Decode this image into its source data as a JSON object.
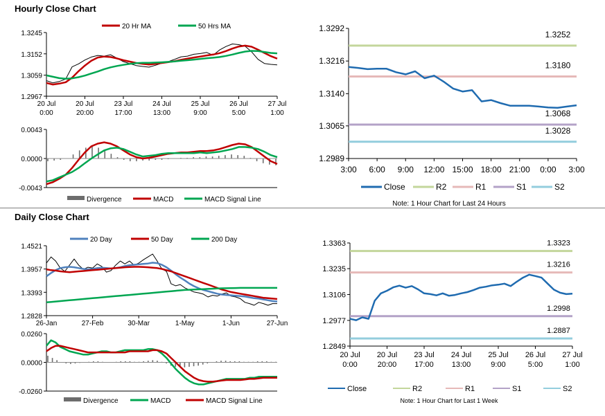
{
  "sections": {
    "hourly_title": "Hourly Close Chart",
    "daily_title": "Daily Close Chart"
  },
  "chart_data": [
    {
      "id": "hourly_price",
      "type": "line",
      "title": "Hourly Close Chart",
      "y_ticks": [
        "1.3245",
        "1.3152",
        "1.3059",
        "1.2967"
      ],
      "ylim": [
        1.2967,
        1.3245
      ],
      "x_ticks": [
        [
          "20 Jul",
          "0:00"
        ],
        [
          "20 Jul",
          "20:00"
        ],
        [
          "23 Jul",
          "17:00"
        ],
        [
          "24 Jul",
          "13:00"
        ],
        [
          "25 Jul",
          "9:00"
        ],
        [
          "26 Jul",
          "5:00"
        ],
        [
          "27 Jul",
          "1:00"
        ]
      ],
      "legend": [
        "20 Hr MA",
        "50 Hrs MA"
      ],
      "series": [
        {
          "name": "Close",
          "color": "#000000",
          "values": [
            1.3035,
            1.3025,
            1.3031,
            1.3042,
            1.3095,
            1.3108,
            1.3125,
            1.3138,
            1.3145,
            1.3142,
            1.3148,
            1.3133,
            1.3118,
            1.3109,
            1.3101,
            1.3097,
            1.3094,
            1.3102,
            1.3111,
            1.3118,
            1.3128,
            1.3139,
            1.3142,
            1.315,
            1.3153,
            1.3158,
            1.3146,
            1.3169,
            1.3184,
            1.3195,
            1.3192,
            1.3185,
            1.3161,
            1.3128,
            1.311,
            1.3106,
            1.3104
          ]
        },
        {
          "name": "20 Hr MA",
          "color": "#c00000",
          "values": [
            1.3025,
            1.3018,
            1.3022,
            1.3028,
            1.3048,
            1.3076,
            1.3101,
            1.3122,
            1.3136,
            1.314,
            1.3138,
            1.3132,
            1.3124,
            1.3118,
            1.3112,
            1.3108,
            1.3105,
            1.3108,
            1.3112,
            1.3116,
            1.312,
            1.3126,
            1.3131,
            1.3136,
            1.314,
            1.3145,
            1.3149,
            1.3155,
            1.3164,
            1.3175,
            1.3184,
            1.3188,
            1.3183,
            1.317,
            1.3156,
            1.3142,
            1.3131
          ]
        },
        {
          "name": "50 Hrs MA",
          "color": "#00a651",
          "values": [
            1.3058,
            1.3052,
            1.3046,
            1.3043,
            1.3045,
            1.305,
            1.3057,
            1.3066,
            1.3075,
            1.3085,
            1.3093,
            1.3099,
            1.3104,
            1.3108,
            1.3111,
            1.3113,
            1.3113,
            1.3114,
            1.3115,
            1.3117,
            1.3119,
            1.3122,
            1.3124,
            1.3127,
            1.313,
            1.3133,
            1.3135,
            1.3138,
            1.3143,
            1.3149,
            1.3156,
            1.3162,
            1.3165,
            1.3164,
            1.316,
            1.3156,
            1.3154
          ]
        }
      ]
    },
    {
      "id": "hourly_macd",
      "type": "line",
      "y_ticks": [
        "0.0043",
        "0.0000",
        "-0.0043"
      ],
      "ylim": [
        -0.0043,
        0.0043
      ],
      "legend": [
        "Divergence",
        "MACD",
        "MACD Signal Line"
      ],
      "divergence": [
        -0.0004,
        -0.0003,
        -0.0002,
        0.0,
        0.0006,
        0.0012,
        0.0016,
        0.0018,
        0.0016,
        0.0012,
        0.0007,
        0.0002,
        -0.0002,
        -0.0004,
        -0.0004,
        -0.0003,
        -0.0003,
        -0.0002,
        -0.0002,
        -0.0001,
        0.0,
        0.0001,
        0.0001,
        0.0002,
        0.0002,
        0.0003,
        0.0003,
        0.0004,
        0.0005,
        0.0006,
        0.0005,
        0.0004,
        0.0001,
        -0.0004,
        -0.0007,
        -0.0009,
        -0.001
      ],
      "series": [
        {
          "name": "MACD",
          "color": "#c00000",
          "values": [
            -0.0038,
            -0.0035,
            -0.003,
            -0.0024,
            -0.0014,
            -0.0002,
            0.0009,
            0.0018,
            0.0022,
            0.0024,
            0.0022,
            0.0018,
            0.0012,
            0.0006,
            0.0002,
            0.0,
            0.0001,
            0.0003,
            0.0005,
            0.0007,
            0.0008,
            0.0009,
            0.0009,
            0.001,
            0.0011,
            0.0011,
            0.0012,
            0.0014,
            0.0017,
            0.002,
            0.0022,
            0.0021,
            0.0017,
            0.001,
            0.0003,
            -0.0004,
            -0.0008
          ]
        },
        {
          "name": "MACD Signal Line",
          "color": "#00a651",
          "values": [
            -0.0034,
            -0.0032,
            -0.0028,
            -0.0024,
            -0.002,
            -0.0014,
            -0.0007,
            0.0,
            0.0006,
            0.0012,
            0.0015,
            0.0016,
            0.0014,
            0.001,
            0.0006,
            0.0003,
            0.0004,
            0.0005,
            0.0007,
            0.0008,
            0.0008,
            0.0008,
            0.0008,
            0.0008,
            0.0009,
            0.0008,
            0.0009,
            0.001,
            0.0012,
            0.0014,
            0.0017,
            0.0017,
            0.0016,
            0.0014,
            0.001,
            0.0005,
            0.0002
          ]
        }
      ]
    },
    {
      "id": "hourly_24h",
      "type": "line",
      "y_ticks": [
        "1.3292",
        "1.3216",
        "1.3140",
        "1.3065",
        "1.2989"
      ],
      "ylim": [
        1.2989,
        1.3292
      ],
      "x_ticks": [
        "3:00",
        "6:00",
        "9:00",
        "12:00",
        "15:00",
        "18:00",
        "21:00",
        "0:00",
        "3:00"
      ],
      "legend": [
        "Close",
        "R2",
        "R1",
        "S1",
        "S2"
      ],
      "note": "Note: 1 Hour Chart for Last 24 Hours",
      "levels": [
        {
          "name": "R2",
          "value": 1.3252,
          "label": "1.3252",
          "color": "#c3d69b"
        },
        {
          "name": "R1",
          "value": 1.318,
          "label": "1.3180",
          "color": "#e6b9b8"
        },
        {
          "name": "S1",
          "value": 1.3068,
          "label": "1.3068",
          "color": "#b3a2c7"
        },
        {
          "name": "S2",
          "value": 1.3028,
          "label": "1.3028",
          "color": "#93cddd"
        }
      ],
      "series": [
        {
          "name": "Close",
          "color": "#1f6bb0",
          "values": [
            1.3202,
            1.32,
            1.3197,
            1.3198,
            1.3198,
            1.319,
            1.3185,
            1.3192,
            1.3176,
            1.3182,
            1.3168,
            1.3152,
            1.3145,
            1.3148,
            1.3122,
            1.3125,
            1.3118,
            1.3112,
            1.3112,
            1.3112,
            1.311,
            1.3108,
            1.3107,
            1.311,
            1.3113
          ]
        }
      ]
    },
    {
      "id": "daily_price",
      "type": "line",
      "title": "Daily Close Chart",
      "y_ticks": [
        "1.4521",
        "1.3957",
        "1.3393",
        "1.2828"
      ],
      "ylim": [
        1.2828,
        1.4521
      ],
      "x_ticks": [
        "26-Jan",
        "27-Feb",
        "30-Mar",
        "1-May",
        "1-Jun",
        "27-Jun"
      ],
      "legend": [
        "20 Day",
        "50 Day",
        "200 Day"
      ],
      "series": [
        {
          "name": "Close",
          "color": "#000000",
          "values": [
            1.41,
            1.425,
            1.415,
            1.398,
            1.39,
            1.405,
            1.42,
            1.405,
            1.395,
            1.4,
            1.398,
            1.408,
            1.402,
            1.388,
            1.392,
            1.405,
            1.415,
            1.408,
            1.415,
            1.405,
            1.41,
            1.418,
            1.425,
            1.432,
            1.415,
            1.396,
            1.39,
            1.36,
            1.355,
            1.358,
            1.35,
            1.345,
            1.34,
            1.338,
            1.335,
            1.328,
            1.332,
            1.33,
            1.335,
            1.338,
            1.33,
            1.328,
            1.324,
            1.315,
            1.312,
            1.308,
            1.315,
            1.312,
            1.308,
            1.312,
            1.312
          ]
        },
        {
          "name": "20 Day",
          "color": "#4f81bd",
          "values": [
            1.378,
            1.386,
            1.393,
            1.398,
            1.4,
            1.401,
            1.4,
            1.398,
            1.396,
            1.395,
            1.396,
            1.398,
            1.399,
            1.398,
            1.397,
            1.398,
            1.4,
            1.403,
            1.405,
            1.406,
            1.407,
            1.408,
            1.409,
            1.411,
            1.41,
            1.406,
            1.4,
            1.392,
            1.383,
            1.375,
            1.368,
            1.36,
            1.354,
            1.349,
            1.345,
            1.342,
            1.339,
            1.336,
            1.334,
            1.333,
            1.332,
            1.331,
            1.33,
            1.329,
            1.327,
            1.325,
            1.324,
            1.322,
            1.32,
            1.318,
            1.317
          ]
        },
        {
          "name": "50 Day",
          "color": "#c00000",
          "values": [
            1.395,
            1.393,
            1.392,
            1.39,
            1.389,
            1.388,
            1.389,
            1.39,
            1.391,
            1.392,
            1.393,
            1.394,
            1.395,
            1.396,
            1.397,
            1.398,
            1.399,
            1.4,
            1.4005,
            1.401,
            1.401,
            1.4005,
            1.4,
            1.399,
            1.398,
            1.396,
            1.393,
            1.39,
            1.386,
            1.382,
            1.378,
            1.374,
            1.37,
            1.366,
            1.362,
            1.358,
            1.354,
            1.35,
            1.346,
            1.343,
            1.34,
            1.338,
            1.336,
            1.334,
            1.332,
            1.33,
            1.328,
            1.326,
            1.325,
            1.324,
            1.323
          ]
        },
        {
          "name": "200 Day",
          "color": "#00a651",
          "values": [
            1.315,
            1.316,
            1.317,
            1.318,
            1.319,
            1.32,
            1.321,
            1.322,
            1.323,
            1.324,
            1.325,
            1.326,
            1.327,
            1.328,
            1.329,
            1.33,
            1.331,
            1.332,
            1.333,
            1.334,
            1.335,
            1.336,
            1.337,
            1.338,
            1.339,
            1.34,
            1.341,
            1.342,
            1.343,
            1.344,
            1.345,
            1.3455,
            1.346,
            1.3465,
            1.347,
            1.3475,
            1.348,
            1.3485,
            1.349,
            1.3492,
            1.3495,
            1.3497,
            1.35,
            1.35,
            1.35,
            1.35,
            1.35,
            1.35,
            1.35,
            1.35,
            1.35
          ]
        }
      ]
    },
    {
      "id": "daily_macd",
      "type": "line",
      "y_ticks": [
        "0.0260",
        "0.0000",
        "-0.0260"
      ],
      "ylim": [
        -0.026,
        0.026
      ],
      "legend": [
        "Divergence",
        "MACD",
        "MACD Signal Line"
      ],
      "divergence": [
        0.006,
        0.004,
        0.002,
        0.0,
        -0.001,
        -0.0015,
        -0.001,
        -0.0005,
        0.0,
        0.0005,
        0.001,
        0.001,
        0.0005,
        0.0,
        0.0,
        0.0005,
        0.001,
        0.001,
        0.001,
        0.0005,
        0.0005,
        0.001,
        0.0015,
        0.002,
        0.0015,
        0.0005,
        -0.001,
        -0.003,
        -0.004,
        -0.0045,
        -0.0045,
        -0.004,
        -0.0035,
        -0.003,
        -0.002,
        -0.001,
        0.0,
        0.001,
        0.0015,
        0.0015,
        0.001,
        0.001,
        0.001,
        0.0005,
        0.0005,
        0.0005,
        0.001,
        0.001,
        0.001,
        0.0005,
        0.0005
      ],
      "series": [
        {
          "name": "MACD",
          "color": "#00a651",
          "values": [
            0.015,
            0.02,
            0.018,
            0.014,
            0.012,
            0.01,
            0.009,
            0.008,
            0.007,
            0.007,
            0.008,
            0.009,
            0.01,
            0.01,
            0.009,
            0.009,
            0.01,
            0.011,
            0.011,
            0.011,
            0.011,
            0.011,
            0.012,
            0.012,
            0.011,
            0.008,
            0.004,
            -0.001,
            -0.006,
            -0.01,
            -0.014,
            -0.017,
            -0.019,
            -0.02,
            -0.02,
            -0.019,
            -0.018,
            -0.017,
            -0.016,
            -0.015,
            -0.015,
            -0.015,
            -0.015,
            -0.015,
            -0.014,
            -0.014,
            -0.013,
            -0.013,
            -0.013,
            -0.013,
            -0.013
          ]
        },
        {
          "name": "MACD Signal Line",
          "color": "#c00000",
          "values": [
            0.01,
            0.013,
            0.015,
            0.015,
            0.014,
            0.013,
            0.012,
            0.011,
            0.01,
            0.009,
            0.009,
            0.009,
            0.009,
            0.009,
            0.009,
            0.009,
            0.009,
            0.009,
            0.01,
            0.01,
            0.01,
            0.01,
            0.01,
            0.011,
            0.011,
            0.01,
            0.008,
            0.004,
            0.0,
            -0.004,
            -0.008,
            -0.011,
            -0.014,
            -0.016,
            -0.017,
            -0.0175,
            -0.0175,
            -0.017,
            -0.0165,
            -0.016,
            -0.016,
            -0.016,
            -0.016,
            -0.0155,
            -0.015,
            -0.015,
            -0.0145,
            -0.014,
            -0.014,
            -0.014,
            -0.014
          ]
        }
      ]
    },
    {
      "id": "daily_week",
      "type": "line",
      "y_ticks": [
        "1.3363",
        "1.3235",
        "1.3106",
        "1.2977",
        "1.2849"
      ],
      "ylim": [
        1.2849,
        1.3363
      ],
      "x_ticks": [
        [
          "20 Jul",
          "0:00"
        ],
        [
          "20 Jul",
          "20:00"
        ],
        [
          "23 Jul",
          "17:00"
        ],
        [
          "24 Jul",
          "13:00"
        ],
        [
          "25 Jul",
          "9:00"
        ],
        [
          "26 Jul",
          "5:00"
        ],
        [
          "27 Jul",
          "1:00"
        ]
      ],
      "legend": [
        "Close",
        "R2",
        "R1",
        "S1",
        "S2"
      ],
      "note": "Note: 1 Hour Chart for Last 1 Week",
      "levels": [
        {
          "name": "R2",
          "value": 1.3323,
          "label": "1.3323",
          "color": "#c3d69b"
        },
        {
          "name": "R1",
          "value": 1.3216,
          "label": "1.3216",
          "color": "#e6b9b8"
        },
        {
          "name": "S1",
          "value": 1.2998,
          "label": "1.2998",
          "color": "#b3a2c7"
        },
        {
          "name": "S2",
          "value": 1.2887,
          "label": "1.2887",
          "color": "#93cddd"
        }
      ],
      "series": [
        {
          "name": "Close",
          "color": "#1f6bb0",
          "values": [
            1.2985,
            1.2978,
            1.2992,
            1.2985,
            1.3075,
            1.3112,
            1.3125,
            1.3142,
            1.315,
            1.314,
            1.3148,
            1.3132,
            1.3112,
            1.3108,
            1.3102,
            1.3112,
            1.31,
            1.3104,
            1.3112,
            1.3118,
            1.3128,
            1.314,
            1.3145,
            1.3152,
            1.3155,
            1.316,
            1.3148,
            1.317,
            1.319,
            1.3205,
            1.3198,
            1.319,
            1.316,
            1.313,
            1.3115,
            1.3108,
            1.311
          ]
        }
      ]
    }
  ]
}
